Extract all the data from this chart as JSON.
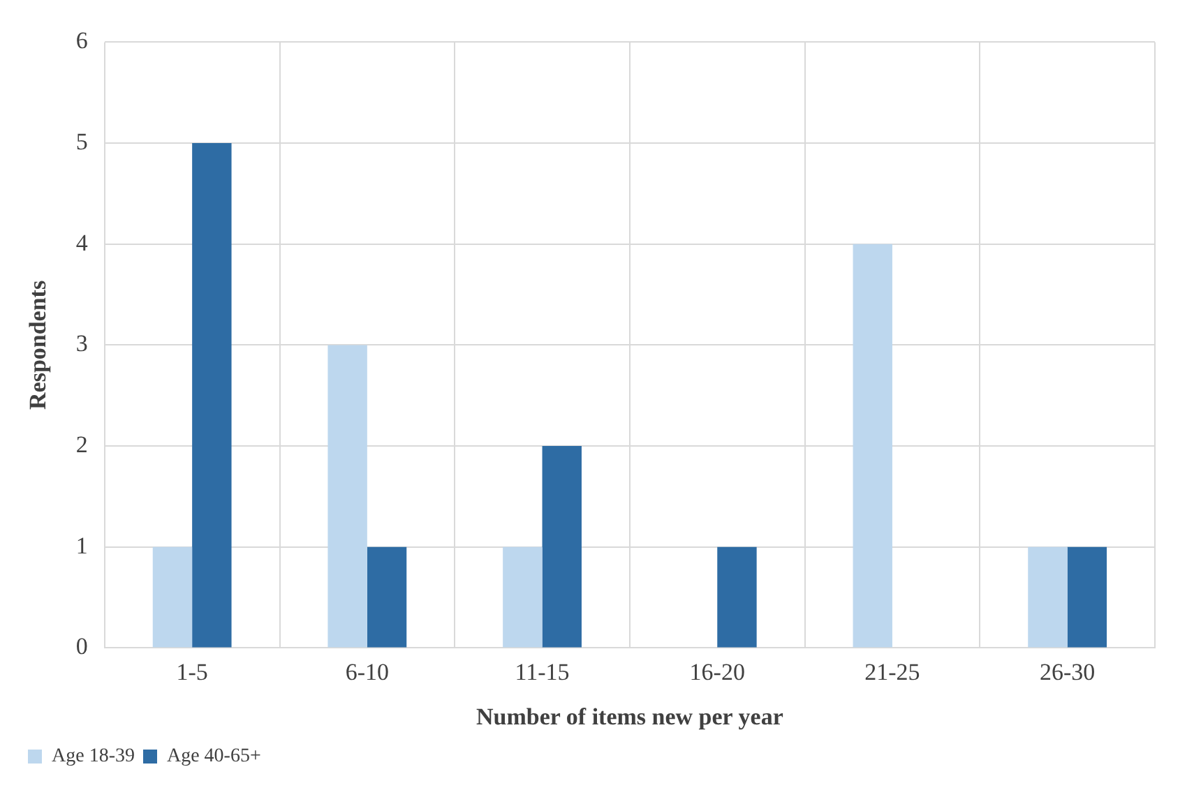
{
  "chart_data": {
    "type": "bar",
    "xlabel": "Number of items new per year",
    "ylabel": "Respondents",
    "categories": [
      "1-5",
      "6-10",
      "11-15",
      "16-20",
      "21-25",
      "26-30"
    ],
    "series": [
      {
        "name": "Age 18-39",
        "color": "#bdd7ee",
        "values": [
          1,
          3,
          1,
          0,
          4,
          1
        ]
      },
      {
        "name": "Age 40-65+",
        "color": "#2e6ca4",
        "values": [
          5,
          1,
          2,
          1,
          0,
          1
        ]
      }
    ],
    "ylim": [
      0,
      6
    ],
    "yticks": [
      0,
      1,
      2,
      3,
      4,
      5,
      6
    ],
    "grid": true,
    "legend": "bottom left"
  }
}
